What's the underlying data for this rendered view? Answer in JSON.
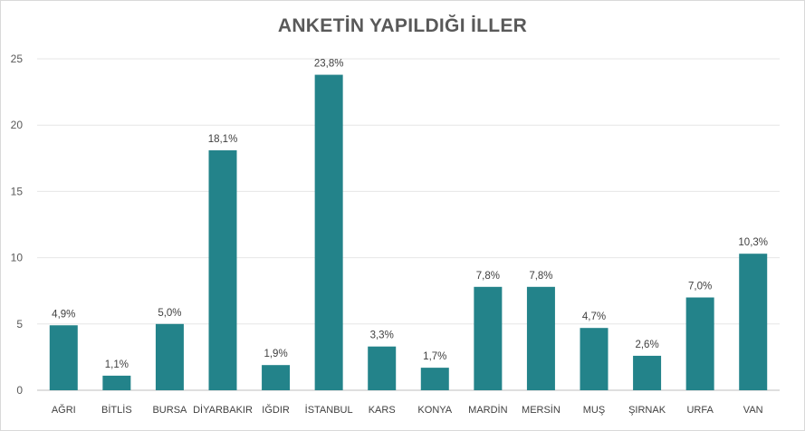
{
  "chart_data": {
    "type": "bar",
    "title": "ANKETİN YAPILDIĞI İLLER",
    "xlabel": "",
    "ylabel": "",
    "ylim": [
      0,
      25
    ],
    "yticks": [
      "0",
      "5",
      "10",
      "15",
      "20",
      "25"
    ],
    "grid": true,
    "categories": [
      "AĞRI",
      "BİTLİS",
      "BURSA",
      "DİYARBAKIR",
      "IĞDIR",
      "İSTANBUL",
      "KARS",
      "KONYA",
      "MARDİN",
      "MERSİN",
      "MUŞ",
      "ŞIRNAK",
      "URFA",
      "VAN"
    ],
    "values": [
      4.9,
      1.1,
      5.0,
      18.1,
      1.9,
      23.8,
      3.3,
      1.7,
      7.8,
      7.8,
      4.7,
      2.6,
      7.0,
      10.3
    ],
    "labels": [
      "4,9%",
      "1,1%",
      "5,0%",
      "18,1%",
      "1,9%",
      "23,8%",
      "3,3%",
      "1,7%",
      "7,8%",
      "7,8%",
      "4,7%",
      "2,6%",
      "7,0%",
      "10,3%"
    ],
    "bar_color": "#23838a",
    "grid_color": "#e6e6e6"
  }
}
